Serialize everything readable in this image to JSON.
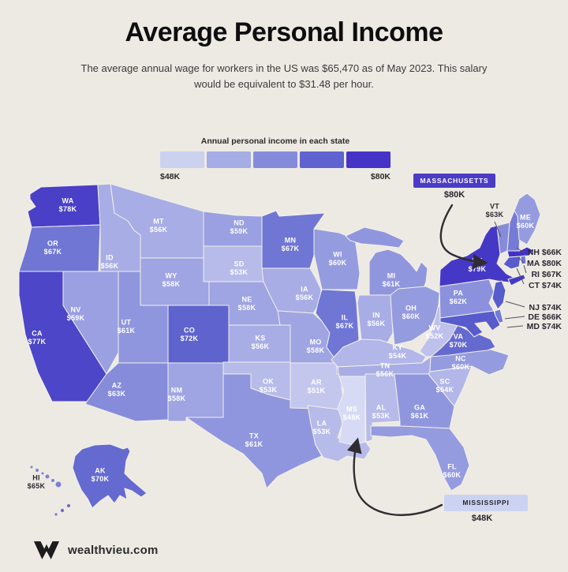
{
  "header": {
    "title": "Average Personal Income",
    "subtitle": "The average annual wage for workers in the US was $65,470 as of May 2023. This salary would be equivalent to $31.48 per hour."
  },
  "legend": {
    "title": "Annual personal income in each state",
    "min_label": "$48K",
    "max_label": "$80K",
    "swatches": [
      "#ccd1f0",
      "#a6ace4",
      "#858bdb",
      "#5f63cf",
      "#4634c6"
    ]
  },
  "callouts": {
    "massachusetts": {
      "label": "MASSACHUSETTS",
      "value": "$80K",
      "badge_color": "#4b3cc6",
      "text_color": "#ffffff"
    },
    "mississippi": {
      "label": "MISSISSIPPI",
      "value": "$48K",
      "badge_color": "#ccd3f1",
      "text_color": "#26242e"
    }
  },
  "footer": {
    "site": "wealthvieu.com"
  },
  "chart_data": {
    "type": "choropleth",
    "region": "United States",
    "title": "Average Personal Income",
    "unit": "USD per year, thousands",
    "us_average_wage": "$65,470",
    "hourly_equivalent": "$31.48",
    "as_of": "May 2023",
    "scale": {
      "min": 48,
      "max": 80,
      "min_label": "$48K",
      "max_label": "$80K",
      "stops": [
        [
          48,
          "#d7daf4"
        ],
        [
          53,
          "#b7bbe9"
        ],
        [
          56,
          "#a8ade5"
        ],
        [
          59,
          "#9aa0e1"
        ],
        [
          62,
          "#8b91dc"
        ],
        [
          67,
          "#7076d4"
        ],
        [
          74,
          "#575bcb"
        ],
        [
          80,
          "#4331c5"
        ]
      ]
    },
    "states": [
      {
        "abbr": "WA",
        "value": 78,
        "label": "$78K",
        "placement": "map"
      },
      {
        "abbr": "OR",
        "value": 67,
        "label": "$67K",
        "placement": "map"
      },
      {
        "abbr": "CA",
        "value": 77,
        "label": "$77K",
        "placement": "map"
      },
      {
        "abbr": "NV",
        "value": 59,
        "label": "$59K",
        "placement": "map"
      },
      {
        "abbr": "ID",
        "value": 56,
        "label": "$56K",
        "placement": "map"
      },
      {
        "abbr": "MT",
        "value": 56,
        "label": "$56K",
        "placement": "map"
      },
      {
        "abbr": "WY",
        "value": 58,
        "label": "$58K",
        "placement": "map"
      },
      {
        "abbr": "UT",
        "value": 61,
        "label": "$61K",
        "placement": "map"
      },
      {
        "abbr": "CO",
        "value": 72,
        "label": "$72K",
        "placement": "map"
      },
      {
        "abbr": "AZ",
        "value": 63,
        "label": "$63K",
        "placement": "map"
      },
      {
        "abbr": "NM",
        "value": 58,
        "label": "$58K",
        "placement": "map"
      },
      {
        "abbr": "ND",
        "value": 59,
        "label": "$59K",
        "placement": "map"
      },
      {
        "abbr": "SD",
        "value": 53,
        "label": "$53K",
        "placement": "map"
      },
      {
        "abbr": "NE",
        "value": 58,
        "label": "$58K",
        "placement": "map"
      },
      {
        "abbr": "KS",
        "value": 56,
        "label": "$56K",
        "placement": "map"
      },
      {
        "abbr": "OK",
        "value": 53,
        "label": "$53K",
        "placement": "map"
      },
      {
        "abbr": "TX",
        "value": 61,
        "label": "$61K",
        "placement": "map"
      },
      {
        "abbr": "MN",
        "value": 67,
        "label": "$67K",
        "placement": "map"
      },
      {
        "abbr": "IA",
        "value": 56,
        "label": "$56K",
        "placement": "map"
      },
      {
        "abbr": "MO",
        "value": 58,
        "label": "$58K",
        "placement": "map"
      },
      {
        "abbr": "AR",
        "value": 51,
        "label": "$51K",
        "placement": "map"
      },
      {
        "abbr": "LA",
        "value": 53,
        "label": "$53K",
        "placement": "map"
      },
      {
        "abbr": "WI",
        "value": 60,
        "label": "$60K",
        "placement": "map"
      },
      {
        "abbr": "IL",
        "value": 67,
        "label": "$67K",
        "placement": "map"
      },
      {
        "abbr": "MI",
        "value": 61,
        "label": "$61K",
        "placement": "map"
      },
      {
        "abbr": "IN",
        "value": 56,
        "label": "$56K",
        "placement": "map"
      },
      {
        "abbr": "OH",
        "value": 60,
        "label": "$60K",
        "placement": "map"
      },
      {
        "abbr": "KY",
        "value": 54,
        "label": "$54K",
        "placement": "map"
      },
      {
        "abbr": "TN",
        "value": 56,
        "label": "$56K",
        "placement": "map"
      },
      {
        "abbr": "MS",
        "value": 48,
        "label": "$48K",
        "placement": "map"
      },
      {
        "abbr": "AL",
        "value": 53,
        "label": "$53K",
        "placement": "map"
      },
      {
        "abbr": "GA",
        "value": 61,
        "label": "$61K",
        "placement": "map"
      },
      {
        "abbr": "FL",
        "value": 60,
        "label": "$60K",
        "placement": "map"
      },
      {
        "abbr": "SC",
        "value": 54,
        "label": "$54K",
        "placement": "map"
      },
      {
        "abbr": "NC",
        "value": 60,
        "label": "$60K",
        "placement": "map"
      },
      {
        "abbr": "VA",
        "value": 70,
        "label": "$70K",
        "placement": "map"
      },
      {
        "abbr": "WV",
        "value": 52,
        "label": "$52K",
        "placement": "map"
      },
      {
        "abbr": "PA",
        "value": 62,
        "label": "$62K",
        "placement": "map"
      },
      {
        "abbr": "NY",
        "value": 79,
        "label": "$79K",
        "placement": "map"
      },
      {
        "abbr": "NJ",
        "value": 74,
        "label": "$74K",
        "placement": "side"
      },
      {
        "abbr": "DE",
        "value": 66,
        "label": "$66K",
        "placement": "side"
      },
      {
        "abbr": "MD",
        "value": 74,
        "label": "$74K",
        "placement": "side"
      },
      {
        "abbr": "VT",
        "value": 63,
        "label": "$63K",
        "placement": "outside"
      },
      {
        "abbr": "NH",
        "value": 66,
        "label": "$66K",
        "placement": "side"
      },
      {
        "abbr": "ME",
        "value": 60,
        "label": "$60K",
        "placement": "map"
      },
      {
        "abbr": "MA",
        "value": 80,
        "label": "$80K",
        "placement": "side"
      },
      {
        "abbr": "RI",
        "value": 67,
        "label": "$67K",
        "placement": "side"
      },
      {
        "abbr": "CT",
        "value": 74,
        "label": "$74K",
        "placement": "side"
      },
      {
        "abbr": "AK",
        "value": 70,
        "label": "$70K",
        "placement": "map"
      },
      {
        "abbr": "HI",
        "value": 65,
        "label": "$65K",
        "placement": "outside"
      }
    ]
  }
}
